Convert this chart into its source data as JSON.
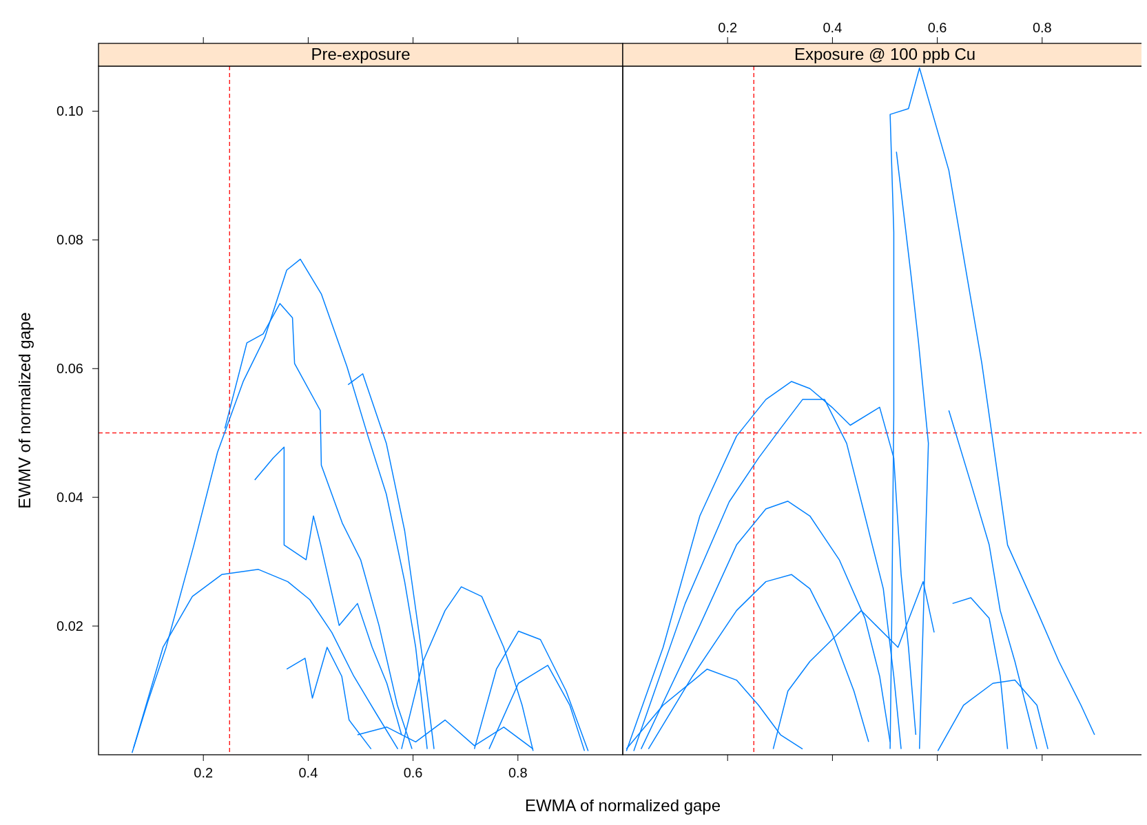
{
  "chart_data": [
    {
      "type": "line",
      "title": "Pre-exposure",
      "xlabel": "EWMA of normalized gape",
      "ylabel": "EWMV of normalized gape",
      "xlim": [
        0,
        1
      ],
      "ylim": [
        0,
        0.107
      ],
      "xticks": [
        0.2,
        0.4,
        0.6,
        0.8
      ],
      "yticks": [
        0.02,
        0.04,
        0.06,
        0.08,
        {
          "value": 0.1,
          "label": "0.10"
        }
      ],
      "marker": "none",
      "line_style": "solid",
      "ref_lines": [
        {
          "axis": "x",
          "value": 0.25,
          "color": "#ff0000",
          "line_style": "dashed"
        },
        {
          "axis": "y",
          "value": 0.05,
          "color": "#ff0000",
          "line_style": "dashed"
        }
      ],
      "series": [
        {
          "color": "#0080ff",
          "x": [
            0.064,
            0.094,
            0.129,
            0.182,
            0.227,
            0.276,
            0.317,
            0.359,
            0.385,
            0.425,
            0.474,
            0.514,
            0.549,
            0.584,
            0.605,
            0.627
          ],
          "values": [
            0.0003,
            0.0082,
            0.0167,
            0.0326,
            0.047,
            0.058,
            0.0648,
            0.0753,
            0.077,
            0.0716,
            0.0603,
            0.0495,
            0.0405,
            0.0269,
            0.0167,
            0.0009
          ]
        },
        {
          "color": "#0080ff",
          "x": [
            0.067,
            0.123,
            0.179,
            0.235,
            0.305,
            0.361,
            0.403,
            0.445,
            0.487,
            0.529,
            0.571
          ],
          "values": [
            0.0011,
            0.0167,
            0.0246,
            0.028,
            0.0288,
            0.0269,
            0.0241,
            0.019,
            0.0122,
            0.0065,
            0.0009
          ]
        },
        {
          "color": "#0080ff",
          "x": [
            0.241,
            0.283,
            0.314,
            0.346,
            0.37,
            0.374,
            0.423,
            0.425,
            0.465,
            0.5,
            0.535,
            0.57,
            0.598
          ],
          "values": [
            0.0507,
            0.064,
            0.0654,
            0.0701,
            0.0679,
            0.0608,
            0.0535,
            0.045,
            0.036,
            0.0303,
            0.0201,
            0.0077,
            0.0009
          ]
        },
        {
          "color": "#0080ff",
          "x": [
            0.298,
            0.333,
            0.354,
            0.354,
            0.396,
            0.41,
            0.424,
            0.459,
            0.494,
            0.522,
            0.55,
            0.578
          ],
          "values": [
            0.0427,
            0.0461,
            0.0478,
            0.0326,
            0.0303,
            0.0371,
            0.0326,
            0.0201,
            0.0235,
            0.0167,
            0.0111,
            0.0031
          ]
        },
        {
          "color": "#0080ff",
          "x": [
            0.476,
            0.504,
            0.549,
            0.584,
            0.619,
            0.64
          ],
          "values": [
            0.0575,
            0.0592,
            0.0484,
            0.0348,
            0.0145,
            0.0009
          ]
        },
        {
          "color": "#0080ff",
          "x": [
            0.578,
            0.619,
            0.661,
            0.692,
            0.731,
            0.773,
            0.808,
            0.829
          ],
          "values": [
            0.0009,
            0.0145,
            0.0224,
            0.0261,
            0.0246,
            0.0167,
            0.0077,
            0.0006
          ]
        },
        {
          "color": "#0080ff",
          "x": [
            0.717,
            0.759,
            0.801,
            0.843,
            0.892,
            0.934
          ],
          "values": [
            0.0009,
            0.0133,
            0.0192,
            0.0179,
            0.0099,
            0.0006
          ]
        },
        {
          "color": "#0080ff",
          "x": [
            0.745,
            0.801,
            0.857,
            0.899,
            0.927
          ],
          "values": [
            0.0009,
            0.0111,
            0.0139,
            0.0077,
            0.0006
          ]
        },
        {
          "color": "#0080ff",
          "x": [
            0.494,
            0.55,
            0.605,
            0.661,
            0.717,
            0.773,
            0.829
          ],
          "values": [
            0.0031,
            0.0043,
            0.002,
            0.0054,
            0.0014,
            0.0043,
            0.0009
          ]
        },
        {
          "color": "#0080ff",
          "x": [
            0.359,
            0.394,
            0.408,
            0.436,
            0.464,
            0.478,
            0.52
          ],
          "values": [
            0.0133,
            0.015,
            0.0088,
            0.0167,
            0.0122,
            0.0054,
            0.0009
          ]
        }
      ]
    },
    {
      "type": "line",
      "title": "Exposure @ 100 ppb Cu",
      "xlim": [
        0,
        1
      ],
      "ylim": [
        0,
        0.107
      ],
      "xticks": [
        0.2,
        0.4,
        0.6,
        0.8
      ],
      "yticks": [
        0.02,
        0.04,
        0.06,
        0.08,
        0.1
      ],
      "tick_labels": "x",
      "marker": "none",
      "line_style": "solid",
      "ref_lines": [
        {
          "axis": "x",
          "value": 0.25,
          "color": "#ff0000",
          "line_style": "dashed"
        },
        {
          "axis": "y",
          "value": 0.05,
          "color": "#ff0000",
          "line_style": "dashed"
        }
      ],
      "series": [
        {
          "color": "#0080ff",
          "x": [
            0.51,
            0.513,
            0.517,
            0.517,
            0.51,
            0.545,
            0.566,
            0.622,
            0.685,
            0.734,
            0.79,
            0.832,
            0.874,
            0.9
          ],
          "values": [
            0.0009,
            0.0201,
            0.0529,
            0.0812,
            0.0995,
            0.1004,
            0.1067,
            0.0908,
            0.0608,
            0.0326,
            0.0224,
            0.0145,
            0.0077,
            0.0031
          ]
        },
        {
          "color": "#0080ff",
          "x": [
            0.566,
            0.583,
            0.564,
            0.55,
            0.522
          ],
          "values": [
            0.0009,
            0.0484,
            0.0642,
            0.0744,
            0.0937
          ]
        },
        {
          "color": "#0080ff",
          "x": [
            0.007,
            0.077,
            0.147,
            0.217,
            0.273,
            0.322,
            0.357,
            0.399,
            0.434,
            0.49,
            0.517,
            0.531,
            0.545,
            0.559
          ],
          "values": [
            0.0006,
            0.0167,
            0.0371,
            0.0495,
            0.0552,
            0.058,
            0.0569,
            0.054,
            0.0512,
            0.054,
            0.0461,
            0.028,
            0.0167,
            0.0031
          ]
        },
        {
          "color": "#0080ff",
          "x": [
            0.021,
            0.119,
            0.203,
            0.259,
            0.301,
            0.343,
            0.385,
            0.427,
            0.462,
            0.497,
            0.517,
            0.531
          ],
          "values": [
            0.0006,
            0.0235,
            0.0393,
            0.0461,
            0.0507,
            0.0552,
            0.0552,
            0.0484,
            0.0371,
            0.0258,
            0.0122,
            0.0009
          ]
        },
        {
          "color": "#0080ff",
          "x": [
            0.035,
            0.147,
            0.217,
            0.273,
            0.315,
            0.357,
            0.413,
            0.462,
            0.49,
            0.51
          ],
          "values": [
            0.0009,
            0.0201,
            0.0326,
            0.0382,
            0.0394,
            0.0371,
            0.0303,
            0.0212,
            0.0122,
            0.002
          ]
        },
        {
          "color": "#0080ff",
          "x": [
            0.049,
            0.133,
            0.217,
            0.273,
            0.322,
            0.357,
            0.399,
            0.441,
            0.469
          ],
          "values": [
            0.0009,
            0.0122,
            0.0224,
            0.0269,
            0.028,
            0.0258,
            0.019,
            0.0099,
            0.002
          ]
        },
        {
          "color": "#0080ff",
          "x": [
            0.007,
            0.077,
            0.161,
            0.217,
            0.259,
            0.301,
            0.343
          ],
          "values": [
            0.0009,
            0.0077,
            0.0133,
            0.0116,
            0.0077,
            0.0031,
            0.0009
          ]
        },
        {
          "color": "#0080ff",
          "x": [
            0.287,
            0.315,
            0.357,
            0.413,
            0.455,
            0.483,
            0.525,
            0.573,
            0.594
          ],
          "values": [
            0.0009,
            0.0099,
            0.0145,
            0.019,
            0.0224,
            0.0201,
            0.0167,
            0.0269,
            0.019
          ]
        },
        {
          "color": "#0080ff",
          "x": [
            0.601,
            0.65,
            0.706,
            0.748,
            0.79,
            0.811
          ],
          "values": [
            0.0006,
            0.0077,
            0.0111,
            0.0116,
            0.0077,
            0.0009
          ]
        },
        {
          "color": "#0080ff",
          "x": [
            0.622,
            0.664,
            0.699,
            0.72,
            0.748,
            0.769,
            0.79
          ],
          "values": [
            0.0535,
            0.0422,
            0.0326,
            0.0224,
            0.0145,
            0.0077,
            0.0009
          ]
        },
        {
          "color": "#0080ff",
          "x": [
            0.629,
            0.664,
            0.699,
            0.72,
            0.734
          ],
          "values": [
            0.0235,
            0.0244,
            0.0212,
            0.0122,
            0.0009
          ]
        }
      ]
    }
  ]
}
